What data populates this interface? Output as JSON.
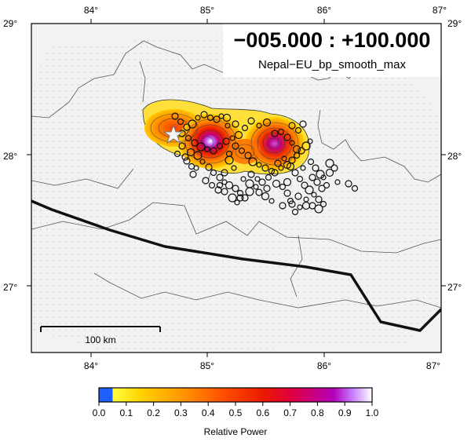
{
  "map": {
    "title_time": "−005.000 : +100.000",
    "subtitle": "Nepal−EU_bp_smooth_max",
    "scale_bar_label": "100 km",
    "lon_ticks": [
      "84°",
      "85°",
      "86°",
      "87°"
    ],
    "lat_ticks": [
      "29°",
      "28°",
      "27°"
    ],
    "lon_values": [
      84,
      85,
      86,
      87
    ],
    "lat_values": [
      29,
      28,
      27
    ],
    "extent": {
      "lon": [
        83.5,
        87.0
      ],
      "lat": [
        26.5,
        29.0
      ]
    }
  },
  "colorbar": {
    "label": "Relative Power",
    "ticks": [
      "0.0",
      "0.1",
      "0.2",
      "0.3",
      "0.4",
      "0.5",
      "0.6",
      "0.7",
      "0.8",
      "0.9",
      "1.0"
    ],
    "colors": [
      "#1f5fff",
      "#ffff40",
      "#ffc400",
      "#ff8a00",
      "#ff4a00",
      "#f21500",
      "#e0003a",
      "#d0007c",
      "#b500b8",
      "#c070ff",
      "#ffffff"
    ]
  },
  "epicenter": {
    "lon": 84.708,
    "lat": 28.147,
    "icon": "star-icon"
  }
}
